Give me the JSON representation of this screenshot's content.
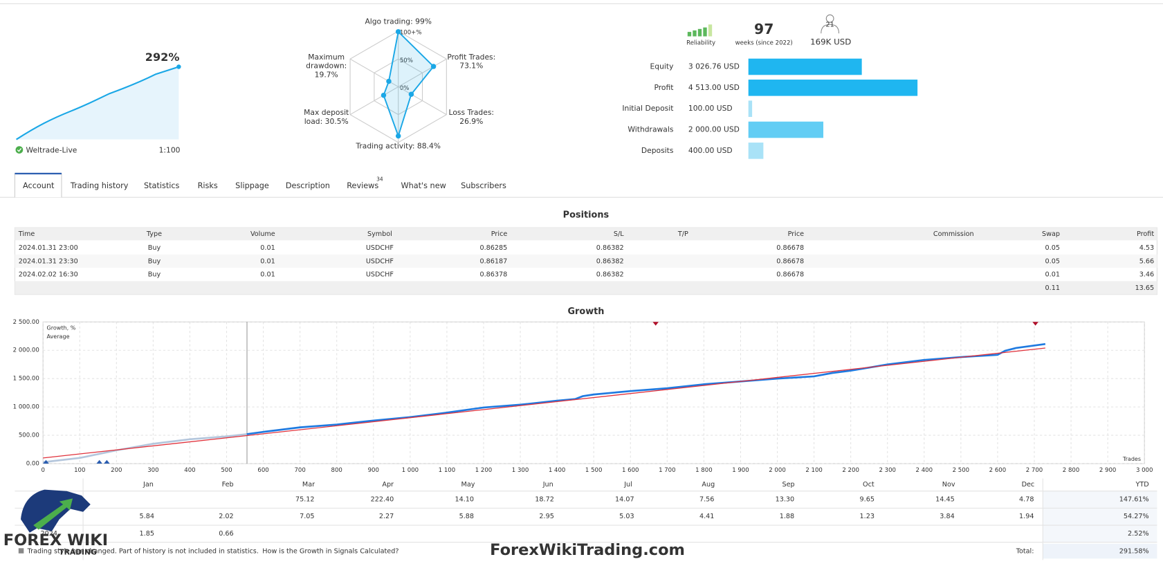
{
  "summary": {
    "growth": "292%",
    "account": "Weltrade-Live",
    "leverage": "1:100",
    "reliability_label": "Reliability",
    "weeks": "97",
    "weeks_label": "weeks (since 2022)",
    "subscribers": "21",
    "funds": "169K USD"
  },
  "chart_data": [
    {
      "type": "radar",
      "color": "#1aa7e6",
      "axes": [
        {
          "name": "Algo trading:",
          "value": 99,
          "label": "99%"
        },
        {
          "name": "Profit Trades:",
          "value": 73.1,
          "label": "73.1%"
        },
        {
          "name": "Loss Trades:",
          "value": 26.9,
          "label": "26.9%"
        },
        {
          "name": "Trading activity:",
          "value": 88.4,
          "label": "88.4%"
        },
        {
          "name": "Max deposit load:",
          "value": 30.5,
          "label": "30.5%"
        },
        {
          "name": "Maximum drawdown:",
          "value": 19.7,
          "label": "19.7%"
        }
      ],
      "rticks": [
        {
          "value": 100,
          "label": "100+%"
        },
        {
          "value": 50,
          "label": "50%"
        },
        {
          "value": 0,
          "label": "0%"
        }
      ]
    },
    {
      "type": "bar",
      "orientation": "horizontal",
      "categories": [
        "Equity",
        "Profit",
        "Initial Deposit",
        "Withdrawals",
        "Deposits"
      ],
      "values": [
        3026.76,
        4513,
        100,
        2000,
        400
      ],
      "value_labels": [
        "3 026.76 USD",
        "4 513.00 USD",
        "100.00 USD",
        "2 000.00 USD",
        "400.00 USD"
      ],
      "colors": [
        "#1fb6f0",
        "#1fb6f0",
        "#a9e2f7",
        "#62cdf4",
        "#a9e2f7"
      ]
    },
    {
      "type": "line",
      "title": "Growth",
      "x_label": "Trades",
      "xlim": [
        0,
        3000
      ],
      "ylim": [
        0,
        2500
      ],
      "grid": true,
      "xticks": [
        0,
        100,
        200,
        300,
        400,
        500,
        600,
        700,
        800,
        900,
        {
          "value": 1000,
          "label": "1 000"
        },
        {
          "value": 1100,
          "label": "1 100"
        },
        {
          "value": 1200,
          "label": "1 200"
        },
        {
          "value": 1300,
          "label": "1 300"
        },
        {
          "value": 1400,
          "label": "1 400"
        },
        {
          "value": 1500,
          "label": "1 500"
        },
        {
          "value": 1600,
          "label": "1 600"
        },
        {
          "value": 1700,
          "label": "1 700"
        },
        {
          "value": 1800,
          "label": "1 800"
        },
        {
          "value": 1900,
          "label": "1 900"
        },
        {
          "value": 2000,
          "label": "2 000"
        },
        {
          "value": 2100,
          "label": "2 100"
        },
        {
          "value": 2200,
          "label": "2 200"
        },
        {
          "value": 2300,
          "label": "2 300"
        },
        {
          "value": 2400,
          "label": "2 400"
        },
        {
          "value": 2500,
          "label": "2 500"
        },
        {
          "value": 2600,
          "label": "2 600"
        },
        {
          "value": 2700,
          "label": "2 700"
        },
        {
          "value": 2800,
          "label": "2 800"
        },
        {
          "value": 2900,
          "label": "2 900"
        },
        {
          "value": 3000,
          "label": "3 000"
        }
      ],
      "yticks": [
        {
          "value": 0,
          "label": "0.00"
        },
        {
          "value": 500,
          "label": "500.00"
        },
        {
          "value": 1000,
          "label": "1 000.00"
        },
        {
          "value": 1500,
          "label": "1 500.00"
        },
        {
          "value": 2000,
          "label": "2 000.00"
        },
        {
          "value": 2500,
          "label": "2 500.00"
        }
      ],
      "series": [
        {
          "color": "#b4c6dc",
          "x": [
            0,
            100,
            200,
            300,
            400,
            500,
            555
          ],
          "values": [
            25,
            100,
            235,
            350,
            430,
            480,
            520
          ]
        },
        {
          "name": "Growth, %",
          "color": "#1f7ae0",
          "x": [
            555,
            600,
            700,
            800,
            900,
            1000,
            1100,
            1200,
            1300,
            1400,
            1450,
            1470,
            1500,
            1600,
            1700,
            1800,
            1900,
            2000,
            2100,
            2150,
            2200,
            2300,
            2400,
            2500,
            2600,
            2620,
            2650,
            2730
          ],
          "values": [
            520,
            560,
            640,
            690,
            760,
            820,
            900,
            990,
            1040,
            1110,
            1140,
            1190,
            1220,
            1280,
            1330,
            1400,
            1450,
            1500,
            1540,
            1600,
            1640,
            1750,
            1830,
            1880,
            1920,
            1990,
            2040,
            2110
          ]
        },
        {
          "name": "Average",
          "color": "#e0303a",
          "x": [
            0,
            2730
          ],
          "values": [
            100,
            2040
          ]
        }
      ]
    }
  ],
  "tabs": [
    "Account",
    "Trading history",
    "Statistics",
    "Risks",
    "Slippage",
    "Description",
    "Reviews",
    "What's new",
    "Subscribers"
  ],
  "reviews_badge": "34",
  "positions": {
    "title": "Positions",
    "columns": [
      "Time",
      "Type",
      "Volume",
      "Symbol",
      "Price",
      "S/L",
      "T/P",
      "Price",
      "Commission",
      "Swap",
      "Profit"
    ],
    "rows": [
      [
        "2024.01.31 23:00",
        "Buy",
        "0.01",
        "USDCHF",
        "0.86285",
        "0.86382",
        null,
        "0.86678",
        null,
        "0.05",
        "4.53"
      ],
      [
        "2024.01.31 23:30",
        "Buy",
        "0.01",
        "USDCHF",
        "0.86187",
        "0.86382",
        null,
        "0.86678",
        null,
        "0.05",
        "5.66"
      ],
      [
        "2024.02.02 16:30",
        "Buy",
        "0.01",
        "USDCHF",
        "0.86378",
        "0.86382",
        null,
        "0.86678",
        null,
        "0.01",
        "3.46"
      ]
    ],
    "totals": {
      "swap": "0.11",
      "profit": "13.65"
    }
  },
  "monthly": {
    "columns": [
      "Jan",
      "Feb",
      "Mar",
      "Apr",
      "May",
      "Jun",
      "Jul",
      "Aug",
      "Sep",
      "Oct",
      "Nov",
      "Dec",
      "YTD"
    ],
    "rows": [
      {
        "year": null,
        "cells": [
          null,
          null,
          "75.12",
          "222.40",
          "14.10",
          "18.72",
          "14.07",
          "7.56",
          "13.30",
          "9.65",
          "14.45",
          "4.78",
          "147.61%"
        ]
      },
      {
        "year": null,
        "cells": [
          "5.84",
          "2.02",
          "7.05",
          "2.27",
          "5.88",
          "2.95",
          "5.03",
          "4.41",
          "1.88",
          "1.23",
          "3.84",
          "1.94",
          "54.27%"
        ]
      },
      {
        "year": "2024",
        "cells": [
          "1.85",
          "0.66",
          null,
          null,
          null,
          null,
          null,
          null,
          null,
          null,
          null,
          null,
          "2.52%"
        ]
      }
    ],
    "note": "Trading style has changed. Part of history is not included in statistics.",
    "link": "How is the Growth in Signals Calculated?",
    "total_label": "Total:",
    "total": "291.58%"
  },
  "logo": {
    "text": "FOREX WIKI",
    "subtitle": "TRADING"
  },
  "watermark": "ForexWikiTrading.com"
}
